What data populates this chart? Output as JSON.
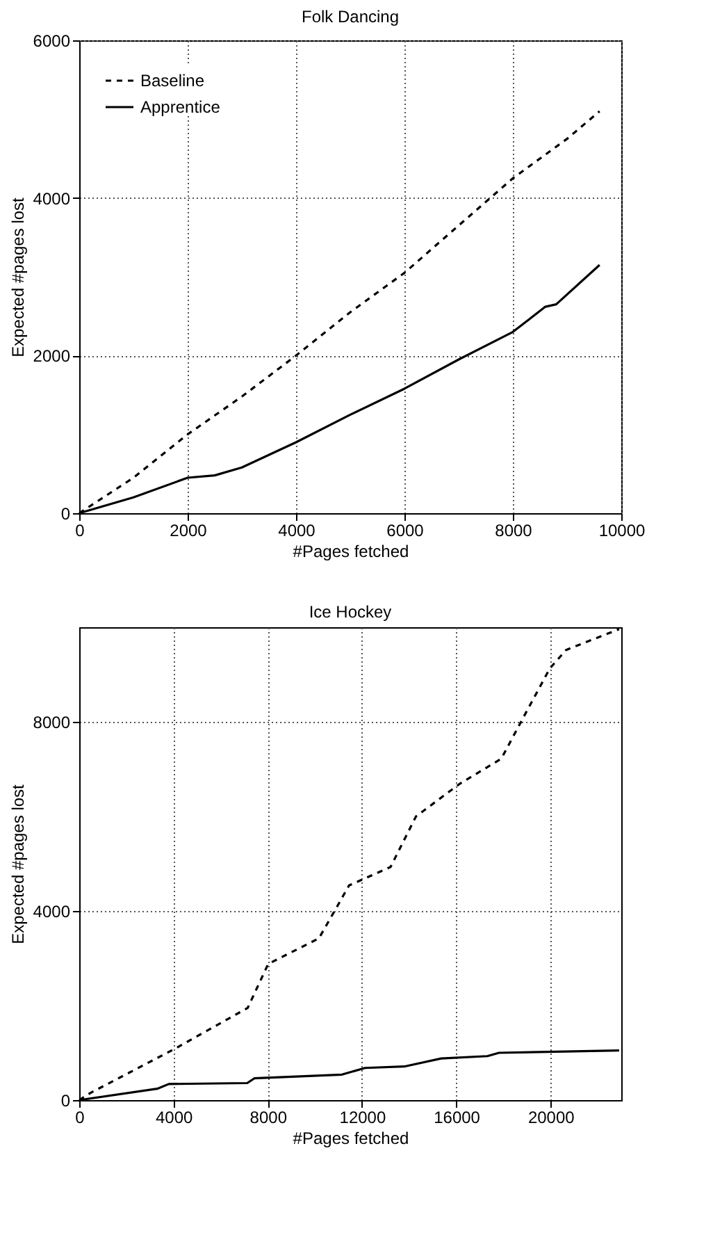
{
  "chart_data": [
    {
      "type": "line",
      "title": "Folk Dancing",
      "xlabel": "#Pages fetched",
      "ylabel": "Expected #pages lost",
      "xlim": [
        0,
        10000
      ],
      "xticks": [
        0,
        2000,
        4000,
        6000,
        8000,
        10000
      ],
      "ylim": [
        0,
        6000
      ],
      "yticks": [
        0,
        2000,
        4000,
        6000
      ],
      "grid": true,
      "legend": "top left",
      "series": [
        {
          "name": "Baseline",
          "color": "#000000",
          "line_style": "dashed",
          "x": [
            0,
            1000,
            2000,
            3000,
            4000,
            5000,
            6000,
            7000,
            8000,
            9000,
            9600
          ],
          "values": [
            0,
            450,
            1000,
            1480,
            2000,
            2550,
            3050,
            3650,
            4250,
            4750,
            5100
          ]
        },
        {
          "name": "Apprentice",
          "color": "#000000",
          "line_style": "solid",
          "x": [
            0,
            1000,
            2000,
            2500,
            3000,
            4000,
            5000,
            6000,
            7000,
            8000,
            8600,
            8800,
            9600
          ],
          "values": [
            0,
            200,
            450,
            480,
            580,
            900,
            1250,
            1580,
            1950,
            2300,
            2620,
            2650,
            3150
          ]
        }
      ]
    },
    {
      "type": "line",
      "title": "Ice Hockey",
      "xlabel": "#Pages fetched",
      "ylabel": "Expected #pages lost",
      "xlim": [
        0,
        23000
      ],
      "xticks": [
        0,
        4000,
        8000,
        12000,
        16000,
        20000
      ],
      "ylim": [
        0,
        10000
      ],
      "yticks": [
        0,
        4000,
        8000
      ],
      "grid": true,
      "legend": "top left",
      "series": [
        {
          "name": "Baseline",
          "color": "#000000",
          "line_style": "dashed",
          "x": [
            0,
            470,
            4000,
            7150,
            8020,
            10170,
            10950,
            11450,
            13210,
            14290,
            16150,
            17910,
            18800,
            19970,
            20660,
            22910
          ],
          "values": [
            0,
            150,
            1070,
            1950,
            2880,
            3420,
            4100,
            4540,
            4930,
            6000,
            6690,
            7220,
            8050,
            9130,
            9520,
            9960
          ]
        },
        {
          "name": "Apprentice",
          "color": "#000000",
          "line_style": "solid",
          "x": [
            0,
            3310,
            3800,
            7130,
            7430,
            11150,
            12130,
            13790,
            15360,
            17320,
            17810,
            22910
          ],
          "values": [
            0,
            240,
            340,
            360,
            460,
            540,
            680,
            710,
            880,
            930,
            1000,
            1050
          ]
        }
      ]
    }
  ]
}
